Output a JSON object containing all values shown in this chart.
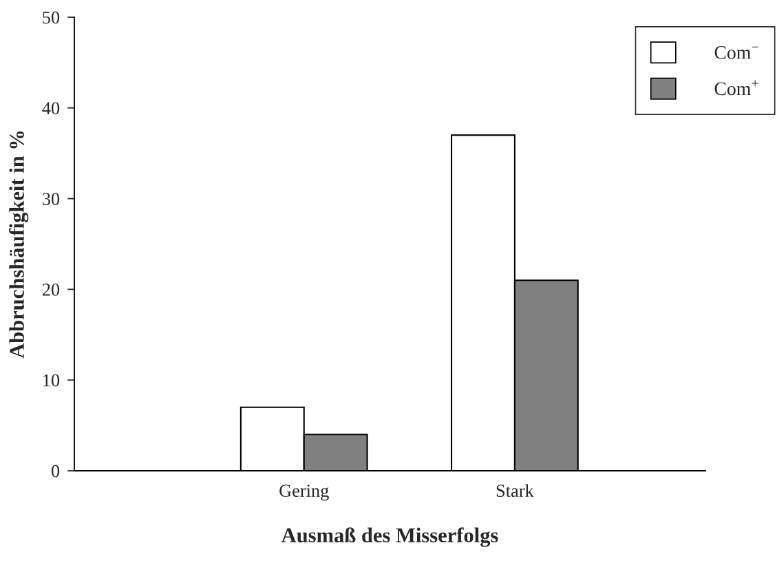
{
  "chart_data": {
    "type": "bar",
    "xlabel": "Ausmaß des Misserfolgs",
    "ylabel": "Abbruchshäufigkeit in %",
    "categories": [
      "Gering",
      "Stark"
    ],
    "series": [
      {
        "name": "Com$^{−}$",
        "color": "#ffffff",
        "values": [
          7,
          37
        ]
      },
      {
        "name": "Com$^{+}$",
        "color": "#808080",
        "values": [
          4,
          21
        ]
      }
    ],
    "ylim": [
      0,
      50
    ],
    "yticks": [
      0,
      10,
      20,
      30,
      40,
      50
    ],
    "grid": false,
    "legend": "top right"
  }
}
